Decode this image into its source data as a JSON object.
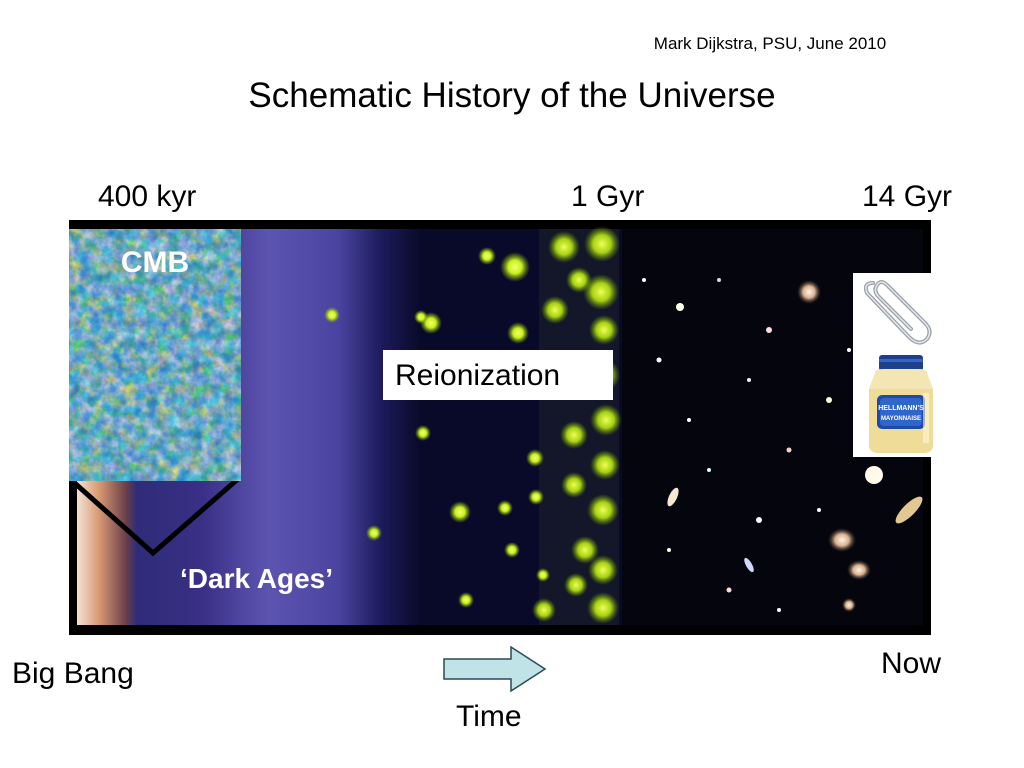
{
  "author_line": "Mark Dijkstra, PSU, June 2010",
  "title": "Schematic History of the Universe",
  "ticks": {
    "t1": "400 kyr",
    "t2": "1 Gyr",
    "t3": "14 Gyr"
  },
  "labels": {
    "cmb": "CMB",
    "reionization": "Reionization",
    "dark_ages": "‘Dark Ages’",
    "big_bang": "Big Bang",
    "now": "Now",
    "time": "Time"
  },
  "product_label": {
    "line1": "HELLMANN'S",
    "line2": "MAYONNAISE"
  },
  "colors": {
    "dark_ages": "#3a2f86",
    "reionization_glow": "#d4f51a",
    "arrow_fill": "#bfe3e6",
    "cmb_blue": "#1f6fc8"
  },
  "icons": {
    "paperclip": "paperclip-icon",
    "mayonnaise": "mayonnaise-jar-icon",
    "arrow": "right-arrow-icon"
  }
}
